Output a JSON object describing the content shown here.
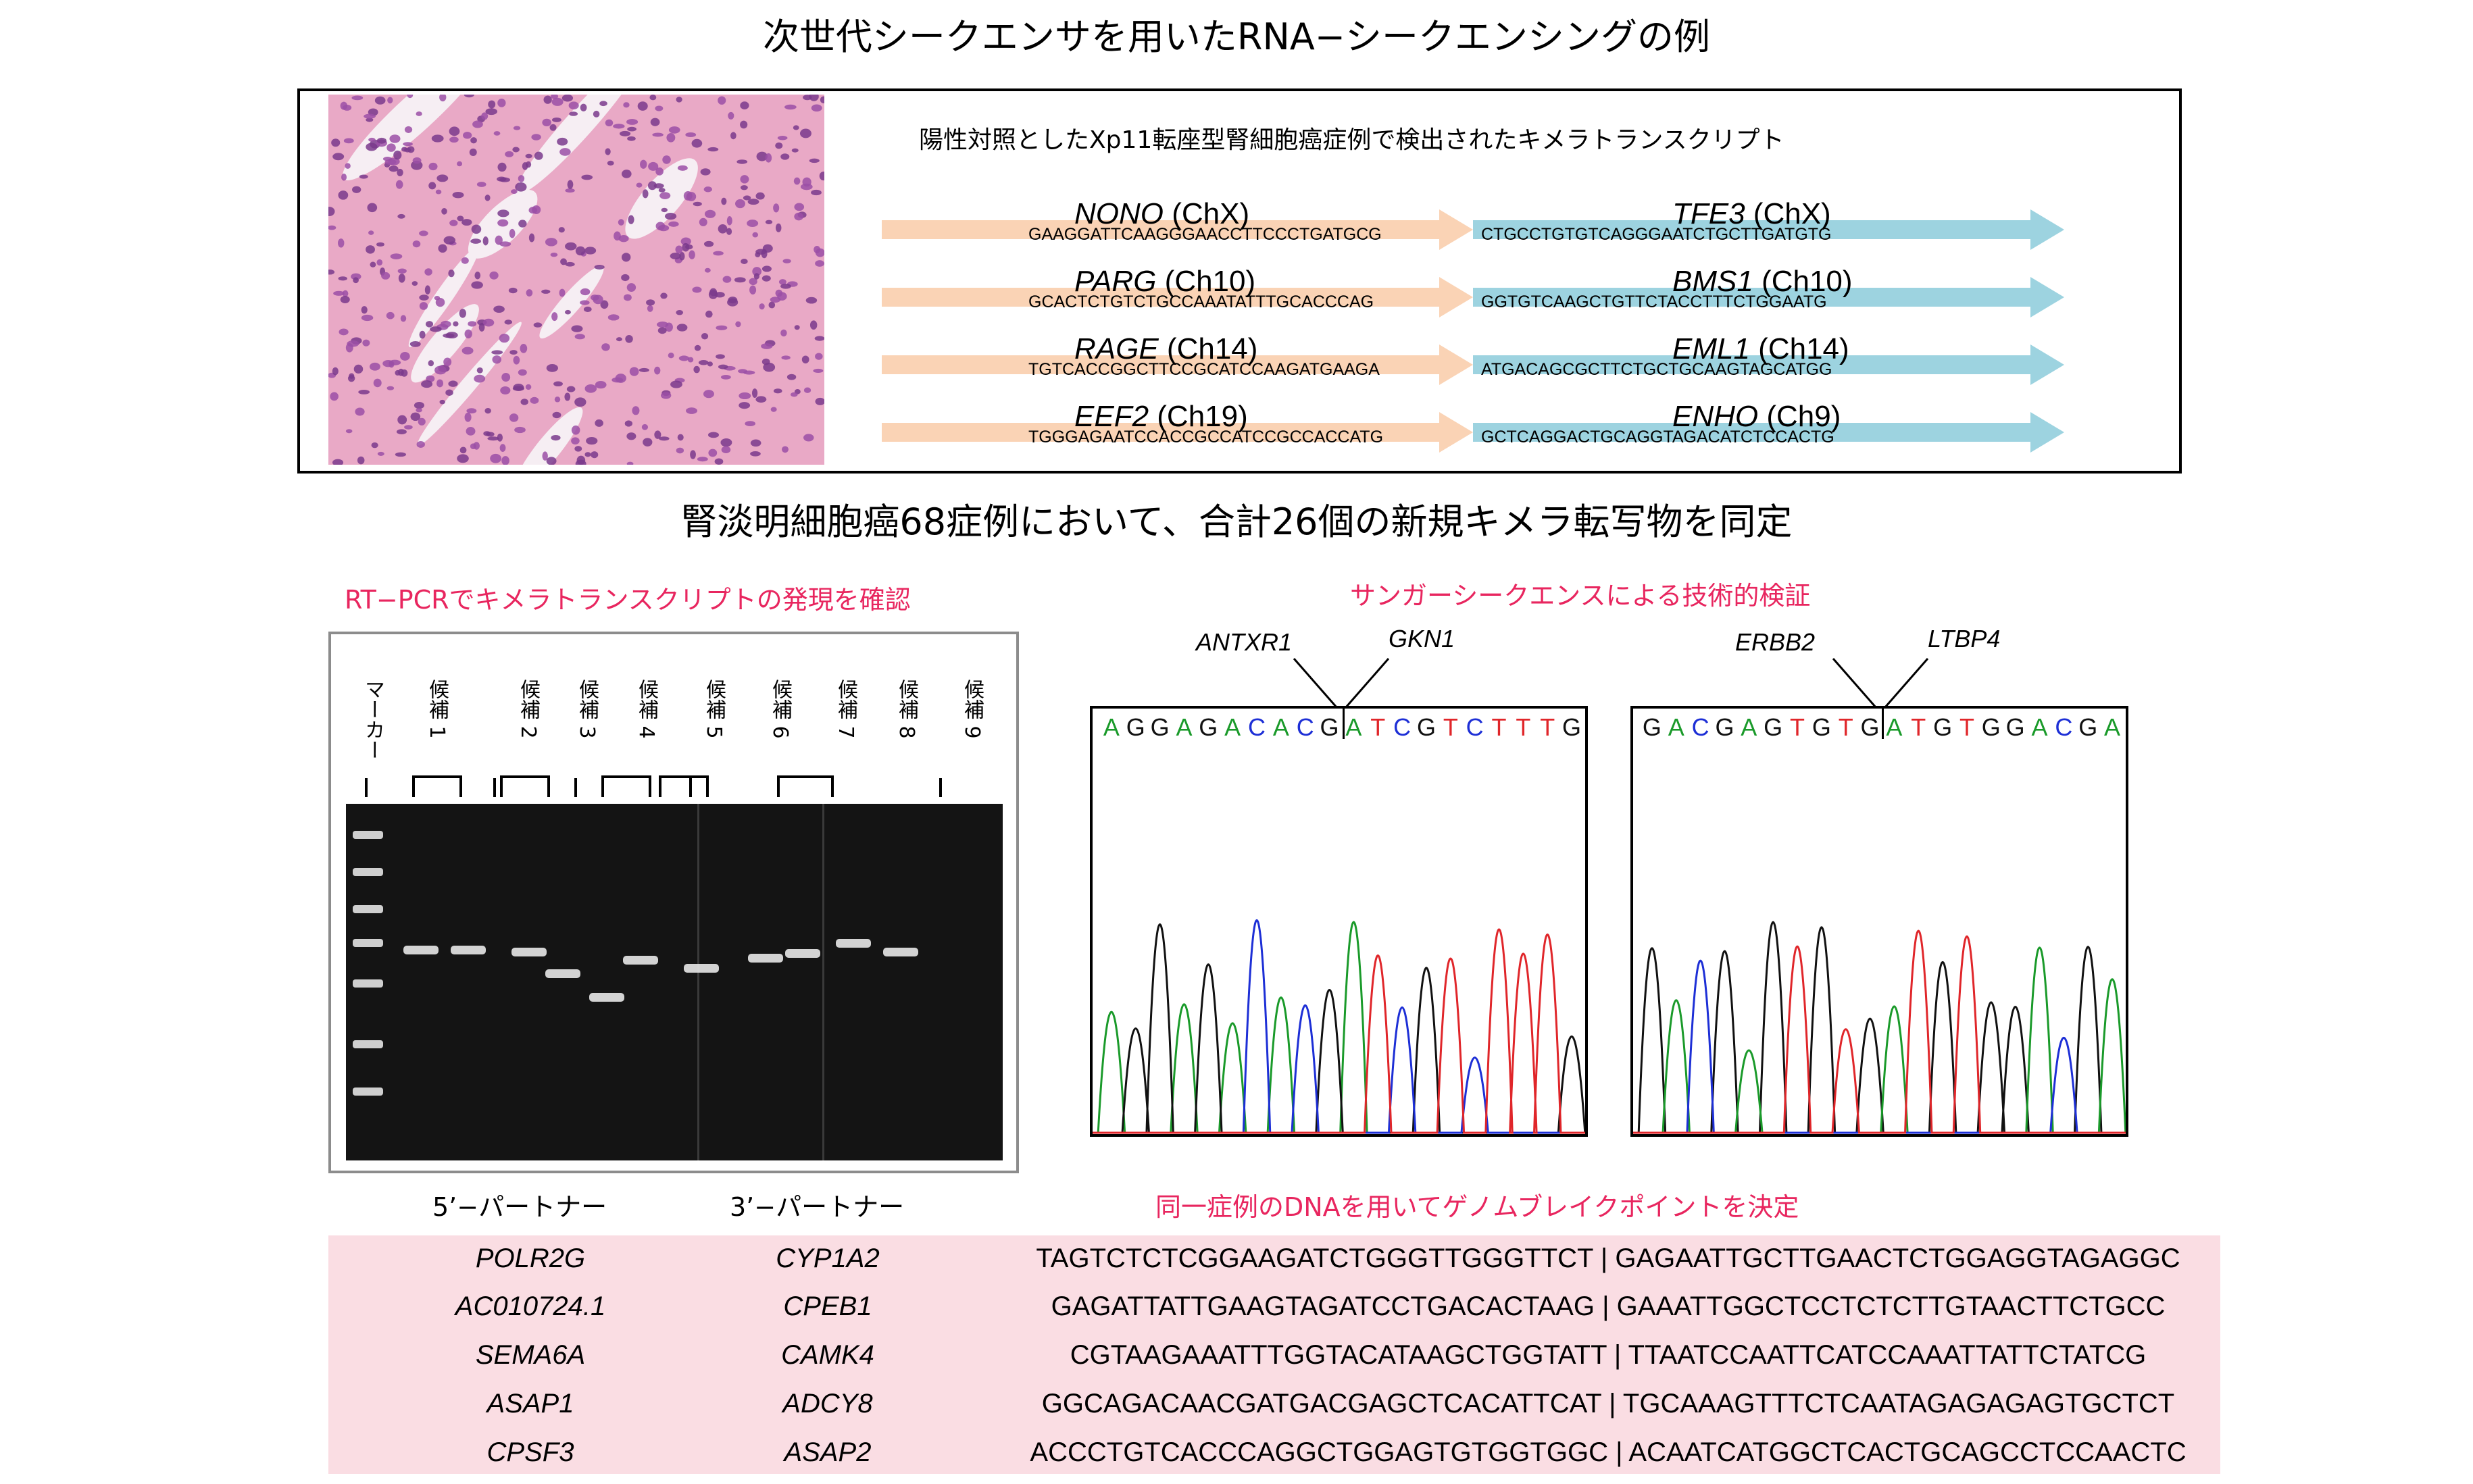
{
  "title_top": "次世代シークエンサを用いたRNA−シークエンシングの例",
  "positive_control_caption": "陽性対照としたXp11転座型腎細胞癌症例で検出されたキメラトランスクリプト",
  "chimeras": [
    {
      "gene5": "NONO",
      "chr5": " (ChX)",
      "seq5": "GAAGGATTCAAGGGAACCTTCCCTGATGCG",
      "gene3": "TFE3",
      "chr3": " (ChX)",
      "seq3": "CTGCCTGTGTCAGGGAATCTGCTTGATGTG"
    },
    {
      "gene5": "PARG",
      "chr5": " (Ch10)",
      "seq5": "GCACTCTGTCTGCCAAATATTTGCACCCAG",
      "gene3": "BMS1",
      "chr3": " (Ch10)",
      "seq3": "GGTGTCAAGCTGTTCTACCTTTCTGGAATG"
    },
    {
      "gene5": "RAGE",
      "chr5": " (Ch14)",
      "seq5": "TGTCACCGGCTTCCGCATCCAAGATGAAGA",
      "gene3": "EML1",
      "chr3": " (Ch14)",
      "seq3": "ATGACAGCGCTTCTGCTGCAAGTAGCATGG"
    },
    {
      "gene5": "EEF2",
      "chr5": " (Ch19)",
      "seq5": "TGGGAGAATCCACCGCCATCCGCCACCATG",
      "gene3": "ENHO",
      "chr3": " (Ch9)",
      "seq3": "GCTCAGGACTGCAGGTAGACATCTCCACTG"
    }
  ],
  "title_middle": "腎淡明細胞癌68症例において、合計26個の新規キメラ転写物を同定",
  "rtpcr_heading": "RT−PCRでキメラトランスクリプトの発現を確認",
  "sanger_heading": "サンガーシークエンスによる技術的検証",
  "gel_lanes": [
    "マーカー",
    "候補 1",
    "候補 2",
    "候補 3",
    "候補 4",
    "候補 5",
    "候補 6",
    "候補 7",
    "候補 8",
    "候補 9"
  ],
  "chromatograms": [
    {
      "gene_left": "ANTXR1",
      "gene_right": "GKN1",
      "bases": "AGGAGACACGATCGTCTTTG"
    },
    {
      "gene_left": "ERBB2",
      "gene_right": "LTBP4",
      "bases": "GACGAGTGTGATGTGGACGA"
    }
  ],
  "base_colors": {
    "A": "#1a9a2a",
    "G": "#111111",
    "C": "#1d2fd6",
    "T": "#e0262a"
  },
  "table_header_5p": "5’−パートナー",
  "table_header_3p": "3’−パートナー",
  "breakpoint_heading": "同一症例のDNAを用いてゲノムブレイクポイントを決定",
  "breakpoints": [
    {
      "p5": "POLR2G",
      "p3": "CYP1A2",
      "seq": "TAGTCTCTCGGAAGATCTGGGTTGGGTTCT |  GAGAATTGCTTGAACTCTGGAGGTAGAGGC"
    },
    {
      "p5": "AC010724.1",
      "p3": "CPEB1",
      "seq": "GAGATTATTGAAGTAGATCCTGACACTAAG | GAAATTGGCTCCTCTCTTGTAACTTCTGCC"
    },
    {
      "p5": "SEMA6A",
      "p3": "CAMK4",
      "seq": "CGTAAGAAATTTGGTACATAAGCTGGTATT | TTAATCCAATTCATCCAAATTATTCTATCG"
    },
    {
      "p5": "ASAP1",
      "p3": "ADCY8",
      "seq": "GGCAGACAACGATGACGAGCTCACATTCAT | TGCAAAGTTTCTCAATAGAGAGAGTGCTCT"
    },
    {
      "p5": "CPSF3",
      "p3": "ASAP2",
      "seq": "ACCCTGTCACCCAGGCTGGAGTGTGGTGGC | ACAATCATGGCTCACTGCAGCCTCCAACTC"
    }
  ],
  "colors": {
    "arrow_5p": "#fad3b5",
    "arrow_3p": "#9dd3e0",
    "heading_pink": "#e8265f",
    "table_bg": "#fadde3"
  }
}
